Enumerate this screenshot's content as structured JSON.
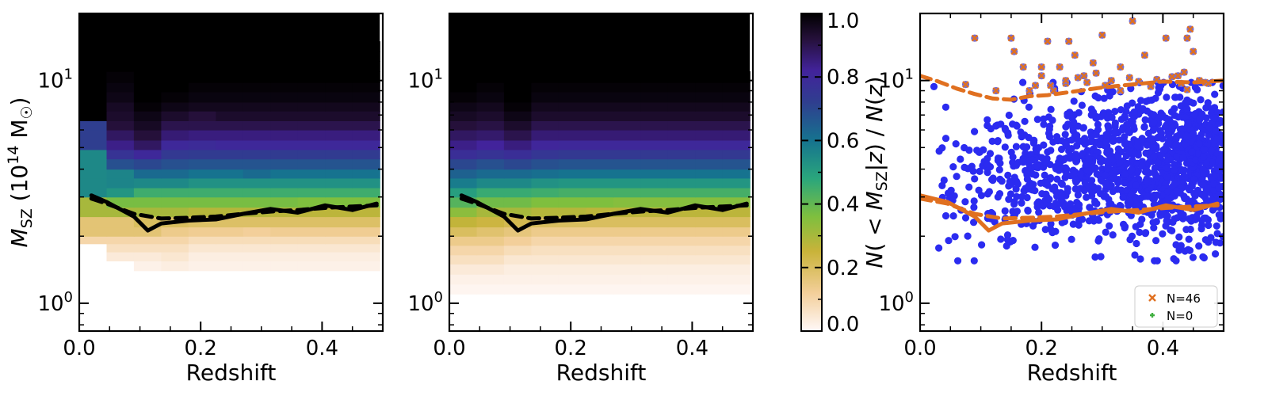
{
  "chart_data": [
    {
      "type": "heatmap",
      "panel": "left",
      "xlabel": "Redshift",
      "ylabel": "M_SZ (10^14 M_☉)",
      "xlim": [
        0.0,
        0.5
      ],
      "ylim": [
        0.75,
        20
      ],
      "yscale": "log",
      "x_ticks": [
        "0.0",
        "0.2",
        "0.4"
      ],
      "y_ticks": [
        "10^0",
        "10^1"
      ],
      "z_bins": [
        0.0,
        0.045,
        0.09,
        0.135,
        0.18,
        0.225,
        0.27,
        0.315,
        0.36,
        0.405,
        0.45,
        0.495
      ],
      "mass_bins": [
        1.4,
        1.55,
        1.7,
        1.85,
        2.0,
        2.2,
        2.45,
        2.7,
        3.0,
        3.3,
        3.65,
        4.0,
        4.45,
        4.9,
        5.4,
        6.0,
        6.6,
        7.3,
        8.0,
        8.9,
        9.8,
        11.0,
        12.2,
        13.5,
        15.0
      ],
      "levels": [
        [
          null,
          null,
          0.02,
          0.03,
          0.02,
          0.02,
          0.02,
          0.02,
          0.02,
          0.02,
          0.02
        ],
        [
          null,
          0.04,
          0.04,
          0.05,
          0.03,
          0.03,
          0.03,
          0.03,
          0.03,
          0.03,
          0.03
        ],
        [
          null,
          0.07,
          0.07,
          0.07,
          0.05,
          0.05,
          0.05,
          0.05,
          0.05,
          0.05,
          0.05
        ],
        [
          0.1,
          0.1,
          0.1,
          0.1,
          0.08,
          0.08,
          0.08,
          0.08,
          0.08,
          0.08,
          0.08
        ],
        [
          0.17,
          0.17,
          0.17,
          0.14,
          0.13,
          0.13,
          0.12,
          0.13,
          0.13,
          0.13,
          0.13
        ],
        [
          0.17,
          0.17,
          0.2,
          0.2,
          0.19,
          0.19,
          0.19,
          0.19,
          0.19,
          0.19,
          0.19
        ],
        [
          0.3,
          0.3,
          0.3,
          0.3,
          0.28,
          0.28,
          0.28,
          0.27,
          0.27,
          0.27,
          0.27
        ],
        [
          0.3,
          0.37,
          0.37,
          0.37,
          0.37,
          0.37,
          0.37,
          0.37,
          0.36,
          0.36,
          0.36
        ],
        [
          0.55,
          0.52,
          0.45,
          0.45,
          0.45,
          0.45,
          0.45,
          0.45,
          0.45,
          0.45,
          0.45
        ],
        [
          0.55,
          0.56,
          0.55,
          0.55,
          0.53,
          0.53,
          0.53,
          0.53,
          0.53,
          0.53,
          0.53
        ],
        [
          0.55,
          0.56,
          0.62,
          0.62,
          0.6,
          0.6,
          0.62,
          0.6,
          0.6,
          0.6,
          0.6
        ],
        [
          0.55,
          0.68,
          0.7,
          0.68,
          0.67,
          0.67,
          0.67,
          0.67,
          0.67,
          0.67,
          0.67
        ],
        [
          0.55,
          0.76,
          0.8,
          0.74,
          0.73,
          0.73,
          0.73,
          0.73,
          0.73,
          0.73,
          0.73
        ],
        [
          0.72,
          0.84,
          0.88,
          0.8,
          0.79,
          0.8,
          0.8,
          0.8,
          0.8,
          0.8,
          0.8
        ],
        [
          0.72,
          0.88,
          0.92,
          0.86,
          0.85,
          0.85,
          0.85,
          0.85,
          0.85,
          0.85,
          0.85
        ],
        [
          0.72,
          0.92,
          0.95,
          0.9,
          0.9,
          0.9,
          0.9,
          0.9,
          0.9,
          0.9,
          0.9
        ],
        [
          1.0,
          0.94,
          0.97,
          0.94,
          0.92,
          0.94,
          0.94,
          0.94,
          0.94,
          0.94,
          0.94
        ],
        [
          1.0,
          0.95,
          0.99,
          0.97,
          0.96,
          0.96,
          0.96,
          0.96,
          0.96,
          0.96,
          0.96
        ],
        [
          1.0,
          0.97,
          1.0,
          0.99,
          0.98,
          0.98,
          0.98,
          0.98,
          0.98,
          0.98,
          0.98
        ],
        [
          1.0,
          0.98,
          1.0,
          1.0,
          0.99,
          0.99,
          0.99,
          0.99,
          0.99,
          0.99,
          0.99
        ],
        [
          1.0,
          0.99,
          1.0,
          1.0,
          1.0,
          1.0,
          1.0,
          1.0,
          1.0,
          1.0,
          1.0
        ],
        [
          1.0,
          1.0,
          1.0,
          1.0,
          1.0,
          1.0,
          1.0,
          1.0,
          1.0,
          1.0,
          1.0
        ],
        [
          1.0,
          1.0,
          1.0,
          1.0,
          1.0,
          1.0,
          1.0,
          1.0,
          1.0,
          1.0,
          1.0
        ],
        [
          1.0,
          1.0,
          1.0,
          1.0,
          1.0,
          1.0,
          1.0,
          1.0,
          1.0,
          1.0,
          1.0
        ]
      ],
      "lines": [
        {
          "style": "solid",
          "color": "#000000",
          "x": [
            0.02,
            0.045,
            0.09,
            0.113,
            0.135,
            0.18,
            0.225,
            0.27,
            0.315,
            0.36,
            0.405,
            0.45,
            0.49
          ],
          "y": [
            3.05,
            2.85,
            2.45,
            2.12,
            2.28,
            2.35,
            2.38,
            2.52,
            2.65,
            2.55,
            2.75,
            2.62,
            2.8
          ]
        },
        {
          "style": "dashed",
          "color": "#000000",
          "x": [
            0.02,
            0.045,
            0.09,
            0.135,
            0.18,
            0.225,
            0.27,
            0.315,
            0.36,
            0.405,
            0.45,
            0.49
          ],
          "y": [
            2.95,
            2.8,
            2.52,
            2.4,
            2.42,
            2.45,
            2.52,
            2.58,
            2.62,
            2.68,
            2.72,
            2.75
          ]
        }
      ]
    },
    {
      "type": "heatmap",
      "panel": "middle",
      "xlabel": "Redshift",
      "xlim": [
        0.0,
        0.5
      ],
      "ylim": [
        0.75,
        20
      ],
      "yscale": "log",
      "x_ticks": [
        "0.0",
        "0.2",
        "0.4"
      ],
      "y_ticks": [
        "10^0",
        "10^1"
      ],
      "z_bins": [
        0.0,
        0.045,
        0.09,
        0.135,
        0.18,
        0.225,
        0.27,
        0.315,
        0.36,
        0.405,
        0.45,
        0.495
      ],
      "mass_bins": [
        1.1,
        1.22,
        1.35,
        1.5,
        1.65,
        1.82,
        2.0,
        2.2,
        2.45,
        2.7,
        3.0,
        3.3,
        3.65,
        4.0,
        4.45,
        4.9,
        5.4,
        6.0,
        6.6,
        7.3,
        8.0,
        8.9,
        9.8,
        11.0
      ],
      "levels": [
        [
          0.01,
          0.01,
          0.01,
          0.01,
          0.01,
          0.01,
          0.01,
          0.01,
          0.01,
          0.01,
          0.01
        ],
        [
          0.02,
          0.02,
          0.02,
          0.02,
          0.02,
          0.02,
          0.02,
          0.02,
          0.02,
          0.02,
          0.02
        ],
        [
          0.04,
          0.04,
          0.03,
          0.03,
          0.03,
          0.03,
          0.03,
          0.03,
          0.03,
          0.03,
          0.03
        ],
        [
          0.07,
          0.07,
          0.05,
          0.05,
          0.05,
          0.05,
          0.05,
          0.05,
          0.05,
          0.05,
          0.05
        ],
        [
          0.1,
          0.1,
          0.08,
          0.07,
          0.07,
          0.07,
          0.07,
          0.07,
          0.07,
          0.07,
          0.07
        ],
        [
          0.14,
          0.14,
          0.12,
          0.1,
          0.1,
          0.1,
          0.1,
          0.1,
          0.1,
          0.1,
          0.1
        ],
        [
          0.2,
          0.18,
          0.16,
          0.14,
          0.14,
          0.14,
          0.14,
          0.14,
          0.14,
          0.14,
          0.14
        ],
        [
          0.26,
          0.24,
          0.22,
          0.2,
          0.2,
          0.2,
          0.2,
          0.2,
          0.2,
          0.2,
          0.2
        ],
        [
          0.34,
          0.3,
          0.3,
          0.28,
          0.28,
          0.27,
          0.27,
          0.27,
          0.27,
          0.27,
          0.27
        ],
        [
          0.42,
          0.38,
          0.38,
          0.36,
          0.36,
          0.36,
          0.35,
          0.35,
          0.35,
          0.35,
          0.35
        ],
        [
          0.5,
          0.46,
          0.46,
          0.45,
          0.44,
          0.44,
          0.44,
          0.44,
          0.44,
          0.44,
          0.44
        ],
        [
          0.58,
          0.55,
          0.55,
          0.53,
          0.52,
          0.52,
          0.52,
          0.52,
          0.52,
          0.52,
          0.52
        ],
        [
          0.64,
          0.62,
          0.62,
          0.61,
          0.6,
          0.6,
          0.6,
          0.6,
          0.6,
          0.6,
          0.6
        ],
        [
          0.7,
          0.68,
          0.7,
          0.68,
          0.67,
          0.67,
          0.67,
          0.67,
          0.67,
          0.67,
          0.67
        ],
        [
          0.78,
          0.76,
          0.78,
          0.75,
          0.74,
          0.74,
          0.74,
          0.74,
          0.74,
          0.74,
          0.74
        ],
        [
          0.84,
          0.82,
          0.85,
          0.81,
          0.8,
          0.8,
          0.8,
          0.8,
          0.8,
          0.8,
          0.8
        ],
        [
          0.88,
          0.87,
          0.9,
          0.86,
          0.86,
          0.86,
          0.86,
          0.86,
          0.86,
          0.86,
          0.86
        ],
        [
          0.92,
          0.91,
          0.94,
          0.9,
          0.9,
          0.9,
          0.9,
          0.9,
          0.9,
          0.9,
          0.9
        ],
        [
          0.95,
          0.94,
          0.97,
          0.94,
          0.94,
          0.94,
          0.94,
          0.94,
          0.94,
          0.94,
          0.94
        ],
        [
          0.97,
          0.96,
          0.99,
          0.96,
          0.96,
          0.96,
          0.96,
          0.96,
          0.96,
          0.96,
          0.96
        ],
        [
          0.99,
          0.98,
          1.0,
          0.98,
          0.98,
          0.98,
          0.98,
          0.98,
          0.98,
          0.98,
          0.98
        ],
        [
          1.0,
          0.99,
          1.0,
          0.99,
          0.99,
          0.99,
          0.99,
          0.99,
          0.99,
          0.99,
          0.99
        ],
        [
          1.0,
          1.0,
          1.0,
          1.0,
          1.0,
          1.0,
          1.0,
          1.0,
          1.0,
          1.0,
          1.0
        ]
      ],
      "lines": [
        {
          "style": "solid",
          "color": "#000000",
          "x": [
            0.02,
            0.045,
            0.09,
            0.113,
            0.135,
            0.18,
            0.225,
            0.27,
            0.315,
            0.36,
            0.405,
            0.45,
            0.49
          ],
          "y": [
            3.05,
            2.85,
            2.45,
            2.12,
            2.28,
            2.35,
            2.38,
            2.52,
            2.65,
            2.55,
            2.75,
            2.62,
            2.8
          ]
        },
        {
          "style": "dashed",
          "color": "#000000",
          "x": [
            0.02,
            0.045,
            0.09,
            0.135,
            0.18,
            0.225,
            0.27,
            0.315,
            0.36,
            0.405,
            0.45,
            0.49
          ],
          "y": [
            2.95,
            2.8,
            2.52,
            2.4,
            2.42,
            2.45,
            2.52,
            2.58,
            2.62,
            2.68,
            2.72,
            2.75
          ]
        }
      ]
    },
    {
      "type": "scatter",
      "panel": "right",
      "xlabel": "Redshift",
      "xlim": [
        0.0,
        0.5
      ],
      "ylim": [
        0.75,
        20
      ],
      "yscale": "log",
      "x_ticks": [
        "0.0",
        "0.2",
        "0.4"
      ],
      "y_ticks": [
        "10^0",
        "10^1"
      ],
      "legend": {
        "placement": "lower-right",
        "entries": [
          {
            "label": "N=46",
            "marker": "x",
            "color": "#e07020"
          },
          {
            "label": "N=0",
            "marker": "plus",
            "color": "#40b040"
          }
        ]
      },
      "flagged_points": {
        "marker_color": "#e07020",
        "fill_color": "#7a6fd0",
        "x": [
          0.075,
          0.09,
          0.125,
          0.15,
          0.155,
          0.17,
          0.18,
          0.19,
          0.2,
          0.21,
          0.215,
          0.22,
          0.23,
          0.24,
          0.245,
          0.255,
          0.26,
          0.27,
          0.275,
          0.285,
          0.29,
          0.3,
          0.305,
          0.315,
          0.33,
          0.345,
          0.35,
          0.36,
          0.37,
          0.38,
          0.39,
          0.405,
          0.415,
          0.425,
          0.43,
          0.435,
          0.44,
          0.445,
          0.45,
          0.46,
          0.47,
          0.475,
          0.44,
          0.33,
          0.24,
          0.2
        ],
        "y": [
          9.6,
          15.5,
          9.0,
          15.5,
          13.5,
          11.5,
          9.0,
          9.5,
          11.5,
          15.0,
          9.5,
          9.0,
          11.5,
          9.7,
          15.0,
          13.0,
          10.3,
          10.5,
          9.8,
          12.0,
          10.8,
          16.0,
          9.5,
          10.0,
          11.5,
          10.3,
          18.5,
          9.9,
          13.0,
          9.4,
          10.1,
          15.5,
          10.4,
          10.5,
          9.7,
          10.9,
          15.5,
          17.0,
          13.5,
          10.0,
          9.8,
          9.7,
          9.1,
          9.0,
          10.0,
          10.5
        ]
      },
      "main_points": {
        "color": "#2b2bf0",
        "count": 1400,
        "x_range": [
          0.01,
          0.5
        ],
        "y_median": [
          3.4,
          4.3
        ],
        "y_scatter": 0.16
      },
      "lines": [
        {
          "style": "dashed",
          "color": "#e07020",
          "x": [
            0.0,
            0.03,
            0.06,
            0.09,
            0.12,
            0.15,
            0.18,
            0.21,
            0.25,
            0.3,
            0.35,
            0.4,
            0.45,
            0.5
          ],
          "y": [
            10.5,
            9.9,
            9.2,
            8.7,
            8.3,
            8.2,
            8.5,
            8.6,
            8.9,
            9.3,
            9.6,
            9.9,
            9.8,
            10.0
          ]
        },
        {
          "style": "solid",
          "color": "#e07020",
          "x": [
            0.0,
            0.045,
            0.09,
            0.113,
            0.135,
            0.18,
            0.225,
            0.27,
            0.315,
            0.36,
            0.405,
            0.45,
            0.49
          ],
          "y": [
            3.05,
            2.85,
            2.45,
            2.12,
            2.28,
            2.35,
            2.38,
            2.52,
            2.65,
            2.55,
            2.75,
            2.62,
            2.8
          ]
        },
        {
          "style": "dashed",
          "color": "#e07020",
          "x": [
            0.0,
            0.045,
            0.09,
            0.135,
            0.18,
            0.225,
            0.27,
            0.315,
            0.36,
            0.405,
            0.45,
            0.49
          ],
          "y": [
            2.95,
            2.8,
            2.52,
            2.4,
            2.42,
            2.45,
            2.52,
            2.58,
            2.62,
            2.68,
            2.72,
            2.75
          ]
        }
      ]
    },
    {
      "type": "colorbar",
      "label": "N(< M_SZ|z) / N(z)",
      "range": [
        0.0,
        1.0
      ],
      "ticks": [
        "0.0",
        "0.2",
        "0.4",
        "0.6",
        "0.8",
        "1.0"
      ],
      "colormap": [
        "#fff8f8",
        "#f3cf9a",
        "#c9b33a",
        "#7fbf3e",
        "#2aa67c",
        "#16738f",
        "#2f3e8f",
        "#42239b",
        "#25103a",
        "#000000"
      ]
    }
  ]
}
